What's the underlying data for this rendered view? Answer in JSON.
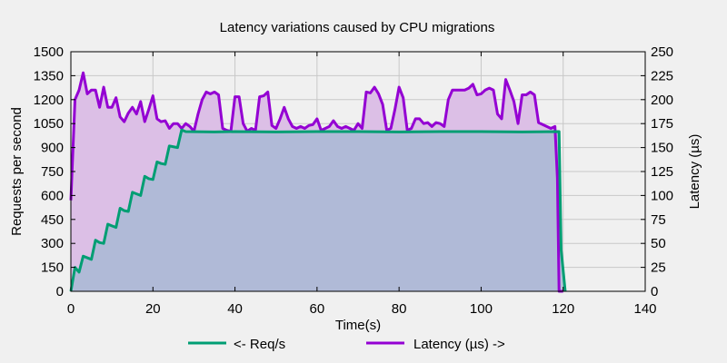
{
  "chart_data": {
    "type": "area",
    "title": "Latency variations caused by CPU migrations",
    "xlabel": "Time(s)",
    "ylabel_left": "Requests per second",
    "ylabel_right": "Latency (µs)",
    "xlim": [
      0,
      140
    ],
    "ylim_left": [
      0,
      1500
    ],
    "ylim_right": [
      0,
      250
    ],
    "xticks": [
      0,
      20,
      40,
      60,
      80,
      100,
      120,
      140
    ],
    "yticks_left": [
      0,
      150,
      300,
      450,
      600,
      750,
      900,
      1050,
      1200,
      1350,
      1500
    ],
    "yticks_right": [
      0,
      25,
      50,
      75,
      100,
      125,
      150,
      175,
      200,
      225,
      250
    ],
    "grid": true,
    "legend_position": "bottom",
    "series": [
      {
        "name": "<- Req/s",
        "axis": "left",
        "color": "#009e73",
        "fill": "#a8b8d4",
        "points": [
          [
            0,
            0
          ],
          [
            1,
            150
          ],
          [
            2,
            120
          ],
          [
            3,
            220
          ],
          [
            4,
            210
          ],
          [
            5,
            200
          ],
          [
            6,
            320
          ],
          [
            7,
            305
          ],
          [
            8,
            300
          ],
          [
            9,
            420
          ],
          [
            10,
            410
          ],
          [
            11,
            400
          ],
          [
            12,
            520
          ],
          [
            13,
            505
          ],
          [
            14,
            500
          ],
          [
            15,
            620
          ],
          [
            16,
            610
          ],
          [
            17,
            600
          ],
          [
            18,
            720
          ],
          [
            19,
            705
          ],
          [
            20,
            700
          ],
          [
            21,
            810
          ],
          [
            22,
            800
          ],
          [
            23,
            795
          ],
          [
            24,
            910
          ],
          [
            25,
            905
          ],
          [
            26,
            900
          ],
          [
            27,
            1010
          ],
          [
            28,
            1000
          ],
          [
            35,
            998
          ],
          [
            40,
            1000
          ],
          [
            50,
            998
          ],
          [
            60,
            1000
          ],
          [
            70,
            1000
          ],
          [
            80,
            998
          ],
          [
            90,
            1000
          ],
          [
            100,
            1000
          ],
          [
            110,
            998
          ],
          [
            119,
            1000
          ],
          [
            119.5,
            260
          ],
          [
            120.5,
            0
          ]
        ]
      },
      {
        "name": "Latency (µs) ->",
        "axis": "right",
        "color": "#9400d3",
        "fill": "#dcbfe6",
        "points": [
          [
            0,
            95
          ],
          [
            1,
            200
          ],
          [
            2,
            210
          ],
          [
            3,
            228
          ],
          [
            4,
            206
          ],
          [
            5,
            210
          ],
          [
            6,
            210
          ],
          [
            7,
            192
          ],
          [
            8,
            213
          ],
          [
            9,
            192
          ],
          [
            10,
            192
          ],
          [
            11,
            202
          ],
          [
            12,
            182
          ],
          [
            13,
            177
          ],
          [
            14,
            186
          ],
          [
            15,
            192
          ],
          [
            16,
            185
          ],
          [
            17,
            198
          ],
          [
            18,
            177
          ],
          [
            19,
            190
          ],
          [
            20,
            204
          ],
          [
            21,
            180
          ],
          [
            22,
            177
          ],
          [
            23,
            178
          ],
          [
            24,
            170
          ],
          [
            25,
            175
          ],
          [
            26,
            175
          ],
          [
            27,
            170
          ],
          [
            28,
            175
          ],
          [
            29,
            172
          ],
          [
            30,
            167
          ],
          [
            31,
            185
          ],
          [
            32,
            200
          ],
          [
            33,
            208
          ],
          [
            34,
            206
          ],
          [
            35,
            208
          ],
          [
            36,
            205
          ],
          [
            37,
            170
          ],
          [
            38,
            168
          ],
          [
            39,
            167
          ],
          [
            40,
            203
          ],
          [
            41,
            203
          ],
          [
            42,
            175
          ],
          [
            43,
            167
          ],
          [
            44,
            170
          ],
          [
            45,
            168
          ],
          [
            46,
            203
          ],
          [
            47,
            204
          ],
          [
            48,
            208
          ],
          [
            49,
            173
          ],
          [
            50,
            170
          ],
          [
            51,
            180
          ],
          [
            52,
            192
          ],
          [
            53,
            180
          ],
          [
            54,
            172
          ],
          [
            55,
            170
          ],
          [
            56,
            172
          ],
          [
            57,
            170
          ],
          [
            58,
            173
          ],
          [
            59,
            174
          ],
          [
            60,
            180
          ],
          [
            61,
            168
          ],
          [
            62,
            170
          ],
          [
            63,
            172
          ],
          [
            64,
            178
          ],
          [
            65,
            172
          ],
          [
            66,
            170
          ],
          [
            67,
            172
          ],
          [
            68,
            170
          ],
          [
            69,
            168
          ],
          [
            70,
            175
          ],
          [
            71,
            170
          ],
          [
            72,
            208
          ],
          [
            73,
            207
          ],
          [
            74,
            213
          ],
          [
            75,
            206
          ],
          [
            76,
            195
          ],
          [
            77,
            168
          ],
          [
            78,
            170
          ],
          [
            79,
            190
          ],
          [
            80,
            213
          ],
          [
            81,
            202
          ],
          [
            82,
            168
          ],
          [
            83,
            170
          ],
          [
            84,
            180
          ],
          [
            85,
            180
          ],
          [
            86,
            175
          ],
          [
            87,
            176
          ],
          [
            88,
            172
          ],
          [
            89,
            176
          ],
          [
            90,
            175
          ],
          [
            91,
            172
          ],
          [
            92,
            200
          ],
          [
            93,
            210
          ],
          [
            94,
            210
          ],
          [
            95,
            210
          ],
          [
            96,
            210
          ],
          [
            97,
            212
          ],
          [
            98,
            216
          ],
          [
            99,
            205
          ],
          [
            100,
            206
          ],
          [
            101,
            210
          ],
          [
            102,
            212
          ],
          [
            103,
            210
          ],
          [
            104,
            185
          ],
          [
            105,
            180
          ],
          [
            106,
            221
          ],
          [
            107,
            210
          ],
          [
            108,
            198
          ],
          [
            109,
            175
          ],
          [
            110,
            205
          ],
          [
            111,
            205
          ],
          [
            112,
            208
          ],
          [
            113,
            205
          ],
          [
            114,
            176
          ],
          [
            115,
            174
          ],
          [
            116,
            172
          ],
          [
            117,
            170
          ],
          [
            118,
            172
          ],
          [
            118.6,
            118
          ],
          [
            119,
            0
          ],
          [
            120,
            0
          ]
        ]
      }
    ]
  },
  "colors": {
    "background": "#f0f0f0",
    "plot_background": "#f0f0f0",
    "grid": "#c8c8c8",
    "overlap": "#aeb6d6"
  }
}
